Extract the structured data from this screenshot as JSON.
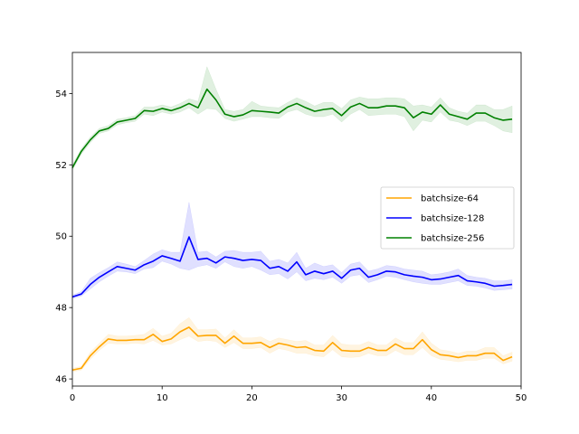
{
  "chart_data": {
    "type": "line",
    "title": "",
    "xlabel": "",
    "ylabel": "",
    "xlim": [
      0,
      50
    ],
    "ylim": [
      45.8,
      55.15
    ],
    "x_ticks": [
      0,
      10,
      20,
      30,
      40,
      50
    ],
    "y_ticks": [
      46,
      48,
      50,
      52,
      54
    ],
    "grid": false,
    "legend_position": "center-right",
    "x": [
      0,
      1,
      2,
      3,
      4,
      5,
      6,
      7,
      8,
      9,
      10,
      11,
      12,
      13,
      14,
      15,
      16,
      17,
      18,
      19,
      20,
      21,
      22,
      23,
      24,
      25,
      26,
      27,
      28,
      29,
      30,
      31,
      32,
      33,
      34,
      35,
      36,
      37,
      38,
      39,
      40,
      41,
      42,
      43,
      44,
      45,
      46,
      47,
      48,
      49
    ],
    "series": [
      {
        "name": "batchsize-64",
        "color": "#ffa500",
        "values": [
          46.25,
          46.3,
          46.65,
          46.9,
          47.12,
          47.08,
          47.08,
          47.1,
          47.1,
          47.25,
          47.05,
          47.12,
          47.32,
          47.45,
          47.2,
          47.22,
          47.22,
          47.0,
          47.2,
          47.0,
          47.0,
          47.02,
          46.88,
          47.0,
          46.95,
          46.88,
          46.9,
          46.8,
          46.78,
          47.02,
          46.8,
          46.78,
          46.78,
          46.88,
          46.8,
          46.8,
          46.98,
          46.85,
          46.85,
          47.1,
          46.82,
          46.68,
          46.65,
          46.6,
          46.65,
          46.65,
          46.72,
          46.72,
          46.52,
          46.62
        ],
        "lower": [
          46.2,
          46.25,
          46.55,
          46.8,
          47.0,
          46.98,
          46.98,
          47.0,
          46.98,
          47.08,
          46.95,
          46.98,
          47.1,
          47.2,
          47.05,
          47.08,
          47.05,
          46.88,
          47.02,
          46.85,
          46.85,
          46.88,
          46.72,
          46.85,
          46.8,
          46.72,
          46.72,
          46.65,
          46.62,
          46.82,
          46.62,
          46.6,
          46.62,
          46.72,
          46.65,
          46.65,
          46.8,
          46.68,
          46.68,
          46.88,
          46.65,
          46.55,
          46.52,
          46.48,
          46.52,
          46.52,
          46.58,
          46.58,
          46.42,
          46.5
        ],
        "upper": [
          46.3,
          46.35,
          46.75,
          47.0,
          47.25,
          47.2,
          47.2,
          47.22,
          47.25,
          47.42,
          47.2,
          47.28,
          47.55,
          47.72,
          47.38,
          47.38,
          47.4,
          47.15,
          47.38,
          47.15,
          47.15,
          47.18,
          47.05,
          47.15,
          47.1,
          47.05,
          47.08,
          46.95,
          46.95,
          47.22,
          46.98,
          46.95,
          46.95,
          47.05,
          46.95,
          46.95,
          47.15,
          47.02,
          47.02,
          47.32,
          47.0,
          46.82,
          46.78,
          46.72,
          46.78,
          46.78,
          46.88,
          46.88,
          46.65,
          46.75
        ]
      },
      {
        "name": "batchsize-128",
        "color": "#0000ff",
        "values": [
          48.3,
          48.38,
          48.65,
          48.85,
          49.0,
          49.15,
          49.1,
          49.05,
          49.2,
          49.3,
          49.45,
          49.38,
          49.3,
          49.98,
          49.35,
          49.38,
          49.25,
          49.42,
          49.38,
          49.32,
          49.35,
          49.32,
          49.1,
          49.15,
          49.02,
          49.28,
          48.92,
          49.02,
          48.95,
          49.02,
          48.82,
          49.05,
          49.1,
          48.85,
          48.92,
          49.02,
          49.0,
          48.92,
          48.88,
          48.85,
          48.78,
          48.8,
          48.85,
          48.9,
          48.75,
          48.72,
          48.68,
          48.6,
          48.62,
          48.65
        ],
        "lower": [
          48.25,
          48.32,
          48.52,
          48.72,
          48.88,
          49.02,
          49.0,
          48.95,
          49.08,
          49.12,
          49.3,
          49.22,
          49.1,
          49.05,
          49.15,
          49.2,
          49.1,
          49.28,
          49.15,
          49.1,
          49.15,
          49.05,
          48.92,
          48.95,
          48.8,
          49.0,
          48.75,
          48.82,
          48.78,
          48.85,
          48.68,
          48.88,
          48.92,
          48.7,
          48.78,
          48.88,
          48.85,
          48.78,
          48.72,
          48.68,
          48.65,
          48.65,
          48.7,
          48.75,
          48.62,
          48.6,
          48.55,
          48.48,
          48.5,
          48.52
        ],
        "upper": [
          48.35,
          48.45,
          48.82,
          48.98,
          49.12,
          49.28,
          49.22,
          49.15,
          49.32,
          49.5,
          49.62,
          49.55,
          49.55,
          50.95,
          49.55,
          49.58,
          49.42,
          49.58,
          49.6,
          49.55,
          49.55,
          49.58,
          49.3,
          49.35,
          49.25,
          49.55,
          49.1,
          49.25,
          49.15,
          49.2,
          48.98,
          49.22,
          49.28,
          49.02,
          49.08,
          49.18,
          49.15,
          49.08,
          49.05,
          49.02,
          48.92,
          48.95,
          49.0,
          49.08,
          48.9,
          48.85,
          48.82,
          48.75,
          48.75,
          48.78
        ]
      },
      {
        "name": "batchsize-256",
        "color": "#008000",
        "values": [
          51.92,
          52.38,
          52.7,
          52.95,
          53.02,
          53.2,
          53.25,
          53.3,
          53.52,
          53.5,
          53.58,
          53.52,
          53.6,
          53.72,
          53.6,
          54.12,
          53.82,
          53.42,
          53.35,
          53.4,
          53.52,
          53.5,
          53.48,
          53.45,
          53.62,
          53.72,
          53.6,
          53.5,
          53.55,
          53.58,
          53.38,
          53.62,
          53.72,
          53.6,
          53.6,
          53.65,
          53.65,
          53.6,
          53.32,
          53.48,
          53.42,
          53.68,
          53.42,
          53.35,
          53.28,
          53.45,
          53.45,
          53.32,
          53.25,
          53.28
        ],
        "lower": [
          51.85,
          52.3,
          52.62,
          52.88,
          52.95,
          53.12,
          53.18,
          53.22,
          53.42,
          53.38,
          53.48,
          53.42,
          53.48,
          53.6,
          53.42,
          53.58,
          53.55,
          53.3,
          53.22,
          53.28,
          53.35,
          53.35,
          53.32,
          53.3,
          53.48,
          53.55,
          53.42,
          53.35,
          53.35,
          53.42,
          53.2,
          53.42,
          53.55,
          53.38,
          53.4,
          53.42,
          53.42,
          53.35,
          52.95,
          53.25,
          53.2,
          53.48,
          53.25,
          53.2,
          53.1,
          53.22,
          53.22,
          53.1,
          52.95,
          52.9
        ],
        "upper": [
          52.0,
          52.45,
          52.78,
          53.02,
          53.1,
          53.28,
          53.32,
          53.38,
          53.62,
          53.62,
          53.68,
          53.62,
          53.72,
          53.85,
          53.78,
          54.75,
          54.12,
          53.55,
          53.5,
          53.55,
          53.78,
          53.65,
          53.62,
          53.6,
          53.75,
          53.88,
          53.78,
          53.65,
          53.75,
          53.75,
          53.58,
          53.82,
          53.9,
          53.85,
          53.85,
          53.88,
          53.88,
          53.85,
          53.65,
          53.68,
          53.62,
          53.88,
          53.6,
          53.5,
          53.45,
          53.68,
          53.68,
          53.55,
          53.55,
          53.65
        ]
      }
    ]
  }
}
